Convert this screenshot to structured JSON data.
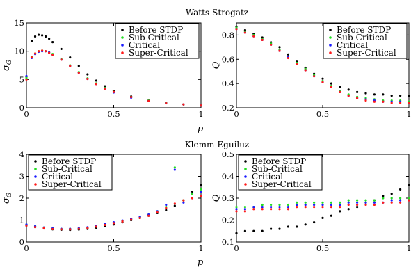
{
  "section_titles": [
    "Watts-Strogatz",
    "Klemm-Eguiluz"
  ],
  "x_axis_label": "p",
  "legend": [
    {
      "name": "Before STDP",
      "color": "#000000"
    },
    {
      "name": "Sub-Critical",
      "color": "#22dd22"
    },
    {
      "name": "Critical",
      "color": "#1a1aff"
    },
    {
      "name": "Super-Critical",
      "color": "#ff1a1a"
    }
  ],
  "chart_data": [
    {
      "type": "scatter",
      "section": "Watts-Strogatz",
      "ylabel": "σ_G",
      "xlim": [
        0,
        1
      ],
      "ylim": [
        0,
        15
      ],
      "xticks": [
        0,
        0.5,
        1
      ],
      "xtick_labels": [
        "0",
        "0.5",
        "1"
      ],
      "yticks": [
        0,
        5,
        10,
        15
      ],
      "ytick_labels": [
        "0",
        "5",
        "10",
        "15"
      ],
      "legend_position": "top-right",
      "series": [
        {
          "name": "Before STDP",
          "x": [
            0.0,
            0.03,
            0.05,
            0.07,
            0.09,
            0.11,
            0.13,
            0.15,
            0.2,
            0.25,
            0.3,
            0.35,
            0.4,
            0.45,
            0.5,
            0.6,
            0.7,
            0.8,
            0.9,
            1.0
          ],
          "y": [
            5.5,
            11.8,
            12.6,
            12.9,
            12.8,
            12.6,
            12.2,
            11.6,
            10.4,
            8.9,
            7.4,
            5.9,
            4.8,
            3.8,
            3.0,
            2.0,
            1.3,
            0.9,
            0.6,
            0.4
          ]
        },
        {
          "name": "Sub-Critical",
          "x": [
            0.0,
            0.03,
            0.05,
            0.07,
            0.09,
            0.11,
            0.13,
            0.15,
            0.2,
            0.25,
            0.3,
            0.35,
            0.4,
            0.45,
            0.5,
            0.6,
            0.7,
            0.8,
            0.9,
            1.0
          ],
          "y": [
            5.3,
            9.0,
            9.6,
            10.0,
            10.1,
            10.0,
            9.8,
            9.5,
            8.6,
            7.5,
            6.3,
            5.2,
            4.3,
            3.5,
            2.8,
            1.9,
            1.3,
            0.9,
            0.6,
            0.4
          ]
        },
        {
          "name": "Critical",
          "x": [
            0.0,
            0.03,
            0.05,
            0.07,
            0.09,
            0.11,
            0.13,
            0.15,
            0.2,
            0.25,
            0.3,
            0.35,
            0.4,
            0.45,
            0.5,
            0.6,
            0.7,
            0.8,
            0.9,
            1.0
          ],
          "y": [
            5.6,
            8.8,
            9.5,
            9.9,
            10.0,
            10.0,
            9.8,
            9.4,
            8.5,
            7.4,
            6.2,
            5.1,
            4.2,
            3.4,
            2.7,
            1.8,
            1.2,
            0.8,
            0.6,
            0.4
          ]
        },
        {
          "name": "Super-Critical",
          "x": [
            0.0,
            0.03,
            0.05,
            0.07,
            0.09,
            0.11,
            0.13,
            0.15,
            0.2,
            0.25,
            0.3,
            0.35,
            0.4,
            0.45,
            0.5,
            0.6,
            0.7,
            0.8,
            0.9,
            1.0
          ],
          "y": [
            5.0,
            8.9,
            9.6,
            10.0,
            10.1,
            10.0,
            9.7,
            9.4,
            8.5,
            7.4,
            6.2,
            5.1,
            4.2,
            3.4,
            2.8,
            1.9,
            1.2,
            0.8,
            0.6,
            0.4
          ]
        }
      ]
    },
    {
      "type": "scatter",
      "section": "Watts-Strogatz",
      "ylabel": "Q",
      "xlim": [
        0,
        1
      ],
      "ylim": [
        0.2,
        0.9
      ],
      "xticks": [
        0,
        0.5,
        1
      ],
      "xtick_labels": [
        "0",
        "0.5",
        "1"
      ],
      "yticks": [
        0.2,
        0.4,
        0.6,
        0.8
      ],
      "ytick_labels": [
        "0.2",
        "0.4",
        "0.6",
        "0.8"
      ],
      "legend_position": "top-right",
      "series": [
        {
          "name": "Before STDP",
          "x": [
            0.0,
            0.05,
            0.1,
            0.15,
            0.2,
            0.25,
            0.3,
            0.35,
            0.4,
            0.45,
            0.5,
            0.55,
            0.6,
            0.65,
            0.7,
            0.75,
            0.8,
            0.85,
            0.9,
            0.95,
            1.0
          ],
          "y": [
            0.87,
            0.84,
            0.81,
            0.78,
            0.74,
            0.7,
            0.64,
            0.58,
            0.53,
            0.48,
            0.44,
            0.4,
            0.37,
            0.35,
            0.33,
            0.32,
            0.31,
            0.31,
            0.3,
            0.3,
            0.3
          ]
        },
        {
          "name": "Sub-Critical",
          "x": [
            0.0,
            0.05,
            0.1,
            0.15,
            0.2,
            0.25,
            0.3,
            0.35,
            0.4,
            0.45,
            0.5,
            0.55,
            0.6,
            0.65,
            0.7,
            0.75,
            0.8,
            0.85,
            0.9,
            0.95,
            1.0
          ],
          "y": [
            0.86,
            0.83,
            0.8,
            0.77,
            0.73,
            0.68,
            0.62,
            0.57,
            0.52,
            0.47,
            0.42,
            0.38,
            0.34,
            0.31,
            0.29,
            0.28,
            0.27,
            0.26,
            0.26,
            0.26,
            0.25
          ]
        },
        {
          "name": "Critical",
          "x": [
            0.0,
            0.05,
            0.1,
            0.15,
            0.2,
            0.25,
            0.3,
            0.35,
            0.4,
            0.45,
            0.5,
            0.55,
            0.6,
            0.65,
            0.7,
            0.75,
            0.8,
            0.85,
            0.9,
            0.95,
            1.0
          ],
          "y": [
            0.85,
            0.82,
            0.79,
            0.76,
            0.72,
            0.67,
            0.62,
            0.56,
            0.51,
            0.46,
            0.41,
            0.37,
            0.33,
            0.3,
            0.28,
            0.27,
            0.26,
            0.25,
            0.25,
            0.25,
            0.24
          ]
        },
        {
          "name": "Super-Critical",
          "x": [
            0.0,
            0.05,
            0.1,
            0.15,
            0.2,
            0.25,
            0.3,
            0.35,
            0.4,
            0.45,
            0.5,
            0.55,
            0.6,
            0.65,
            0.7,
            0.75,
            0.8,
            0.85,
            0.9,
            0.95,
            1.0
          ],
          "y": [
            0.85,
            0.82,
            0.79,
            0.76,
            0.72,
            0.67,
            0.61,
            0.56,
            0.51,
            0.46,
            0.41,
            0.37,
            0.33,
            0.3,
            0.28,
            0.26,
            0.25,
            0.25,
            0.24,
            0.24,
            0.24
          ]
        }
      ]
    },
    {
      "type": "scatter",
      "section": "Klemm-Eguiluz",
      "ylabel": "σ_G",
      "xlim": [
        0,
        1
      ],
      "ylim": [
        0,
        4
      ],
      "xticks": [
        0,
        0.5,
        1
      ],
      "xtick_labels": [
        "0",
        "0.5",
        "1"
      ],
      "yticks": [
        0,
        1,
        2,
        3,
        4
      ],
      "ytick_labels": [
        "0",
        "1",
        "2",
        "3",
        "4"
      ],
      "legend_position": "top-left",
      "series": [
        {
          "name": "Before STDP",
          "x": [
            0.0,
            0.05,
            0.1,
            0.15,
            0.2,
            0.25,
            0.3,
            0.35,
            0.4,
            0.45,
            0.5,
            0.55,
            0.6,
            0.65,
            0.7,
            0.75,
            0.8,
            0.85,
            0.9,
            0.95,
            1.0
          ],
          "y": [
            0.75,
            0.68,
            0.62,
            0.58,
            0.56,
            0.55,
            0.57,
            0.6,
            0.65,
            0.72,
            0.8,
            0.9,
            1.0,
            1.1,
            1.2,
            1.32,
            1.45,
            1.65,
            1.9,
            2.3,
            2.6
          ]
        },
        {
          "name": "Sub-Critical",
          "x": [
            0.0,
            0.05,
            0.1,
            0.15,
            0.2,
            0.25,
            0.3,
            0.35,
            0.4,
            0.45,
            0.5,
            0.55,
            0.6,
            0.65,
            0.7,
            0.75,
            0.8,
            0.85,
            0.9,
            0.95,
            1.0
          ],
          "y": [
            0.8,
            0.72,
            0.66,
            0.62,
            0.6,
            0.6,
            0.62,
            0.66,
            0.72,
            0.8,
            0.88,
            0.96,
            1.05,
            1.15,
            1.25,
            1.4,
            1.6,
            3.4,
            1.9,
            2.2,
            2.4
          ]
        },
        {
          "name": "Critical",
          "x": [
            0.0,
            0.05,
            0.1,
            0.15,
            0.2,
            0.25,
            0.3,
            0.35,
            0.4,
            0.45,
            0.5,
            0.55,
            0.6,
            0.65,
            0.7,
            0.75,
            0.8,
            0.85,
            0.9,
            0.95,
            1.0
          ],
          "y": [
            0.8,
            0.72,
            0.66,
            0.62,
            0.6,
            0.6,
            0.63,
            0.67,
            0.73,
            0.82,
            0.9,
            0.98,
            1.06,
            1.15,
            1.25,
            1.4,
            1.7,
            3.3,
            1.8,
            2.0,
            2.3
          ]
        },
        {
          "name": "Super-Critical",
          "x": [
            0.0,
            0.05,
            0.1,
            0.15,
            0.2,
            0.25,
            0.3,
            0.35,
            0.4,
            0.45,
            0.5,
            0.55,
            0.6,
            0.65,
            0.7,
            0.75,
            0.8,
            0.85,
            0.9,
            0.95,
            1.0
          ],
          "y": [
            0.75,
            0.68,
            0.63,
            0.59,
            0.58,
            0.58,
            0.6,
            0.64,
            0.7,
            0.78,
            0.86,
            0.94,
            1.02,
            1.1,
            1.2,
            1.35,
            1.55,
            1.75,
            1.9,
            2.0,
            2.1
          ]
        }
      ]
    },
    {
      "type": "scatter",
      "section": "Klemm-Eguiluz",
      "ylabel": "Q",
      "xlim": [
        0,
        1
      ],
      "ylim": [
        0.1,
        0.5
      ],
      "xticks": [
        0,
        0.5,
        1
      ],
      "xtick_labels": [
        "0",
        "0.5",
        "1"
      ],
      "yticks": [
        0.1,
        0.2,
        0.3,
        0.4,
        0.5
      ],
      "ytick_labels": [
        "0.1",
        "0.2",
        "0.3",
        "0.4",
        "0.5"
      ],
      "legend_position": "top-left",
      "series": [
        {
          "name": "Before STDP",
          "x": [
            0.0,
            0.05,
            0.1,
            0.15,
            0.2,
            0.25,
            0.3,
            0.35,
            0.4,
            0.45,
            0.5,
            0.55,
            0.6,
            0.65,
            0.7,
            0.75,
            0.8,
            0.85,
            0.9,
            0.95,
            1.0
          ],
          "y": [
            0.14,
            0.15,
            0.15,
            0.15,
            0.16,
            0.16,
            0.17,
            0.17,
            0.18,
            0.19,
            0.21,
            0.22,
            0.24,
            0.25,
            0.26,
            0.28,
            0.29,
            0.31,
            0.32,
            0.34,
            0.36
          ]
        },
        {
          "name": "Sub-Critical",
          "x": [
            0.0,
            0.05,
            0.1,
            0.15,
            0.2,
            0.25,
            0.3,
            0.35,
            0.4,
            0.45,
            0.5,
            0.55,
            0.6,
            0.65,
            0.7,
            0.75,
            0.8,
            0.85,
            0.9,
            0.95,
            1.0
          ],
          "y": [
            0.26,
            0.26,
            0.26,
            0.27,
            0.27,
            0.27,
            0.27,
            0.28,
            0.28,
            0.28,
            0.28,
            0.28,
            0.28,
            0.29,
            0.29,
            0.29,
            0.29,
            0.3,
            0.3,
            0.3,
            0.3
          ]
        },
        {
          "name": "Critical",
          "x": [
            0.0,
            0.05,
            0.1,
            0.15,
            0.2,
            0.25,
            0.3,
            0.35,
            0.4,
            0.45,
            0.5,
            0.55,
            0.6,
            0.65,
            0.7,
            0.75,
            0.8,
            0.85,
            0.9,
            0.95,
            1.0
          ],
          "y": [
            0.25,
            0.25,
            0.26,
            0.26,
            0.26,
            0.26,
            0.26,
            0.27,
            0.27,
            0.27,
            0.27,
            0.27,
            0.27,
            0.28,
            0.28,
            0.28,
            0.28,
            0.28,
            0.29,
            0.29,
            0.29
          ]
        },
        {
          "name": "Super-Critical",
          "x": [
            0.0,
            0.05,
            0.1,
            0.15,
            0.2,
            0.25,
            0.3,
            0.35,
            0.4,
            0.45,
            0.5,
            0.55,
            0.6,
            0.65,
            0.7,
            0.75,
            0.8,
            0.85,
            0.9,
            0.95,
            1.0
          ],
          "y": [
            0.24,
            0.24,
            0.25,
            0.25,
            0.25,
            0.25,
            0.25,
            0.26,
            0.26,
            0.26,
            0.26,
            0.26,
            0.26,
            0.27,
            0.27,
            0.27,
            0.27,
            0.28,
            0.28,
            0.28,
            0.29
          ]
        }
      ]
    }
  ]
}
